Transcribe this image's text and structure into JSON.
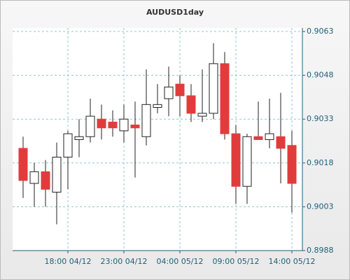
{
  "chart_data": {
    "type": "candlestick",
    "title": "AUDUSD1day",
    "categories": [
      null,
      null,
      null,
      null,
      "18:00 04/12",
      null,
      null,
      null,
      null,
      "23:00 04/12",
      null,
      null,
      null,
      null,
      "04:00 05/12",
      null,
      null,
      null,
      null,
      "09:00 05/12",
      null,
      null,
      null,
      null,
      "14:00 05/12"
    ],
    "open": [
      0.9023,
      0.9011,
      0.9015,
      0.9008,
      0.902,
      0.9026,
      0.9027,
      0.9033,
      0.9032,
      0.9029,
      0.9031,
      0.9027,
      0.9037,
      0.904,
      0.9045,
      0.9041,
      0.9034,
      0.9035,
      0.9052,
      0.9028,
      0.901,
      0.9027,
      0.9026,
      0.9027,
      0.9024
    ],
    "high": [
      0.9027,
      0.9018,
      0.9019,
      0.9025,
      0.9029,
      0.9033,
      0.904,
      0.9038,
      0.9036,
      0.9038,
      0.9039,
      0.905,
      0.9045,
      0.9051,
      0.9048,
      0.9045,
      0.905,
      0.9059,
      0.9056,
      0.9031,
      0.9028,
      0.9039,
      0.904,
      0.9042,
      0.9029
    ],
    "low": [
      0.9006,
      0.9003,
      0.9003,
      0.8997,
      0.9009,
      0.902,
      0.9025,
      0.9026,
      0.9027,
      0.9025,
      0.9013,
      0.9024,
      0.9035,
      0.9034,
      0.9034,
      0.9032,
      0.9032,
      0.9033,
      0.9026,
      0.9004,
      0.9004,
      0.9026,
      0.9023,
      0.9011,
      0.9001
    ],
    "close": [
      0.9012,
      0.9015,
      0.9009,
      0.902,
      0.9028,
      0.9027,
      0.9034,
      0.903,
      0.903,
      0.9033,
      0.903,
      0.9038,
      0.9038,
      0.9044,
      0.9041,
      0.9035,
      0.9035,
      0.9052,
      0.9028,
      0.901,
      0.9027,
      0.9026,
      0.9028,
      0.9023,
      0.9011
    ],
    "up_color": "#ffffff",
    "down_color": "#e03c3c",
    "ylim": [
      0.8988,
      0.9063
    ],
    "yticks": [
      0.8988,
      0.9003,
      0.9018,
      0.9033,
      0.9048,
      0.9063
    ],
    "grid": true
  }
}
